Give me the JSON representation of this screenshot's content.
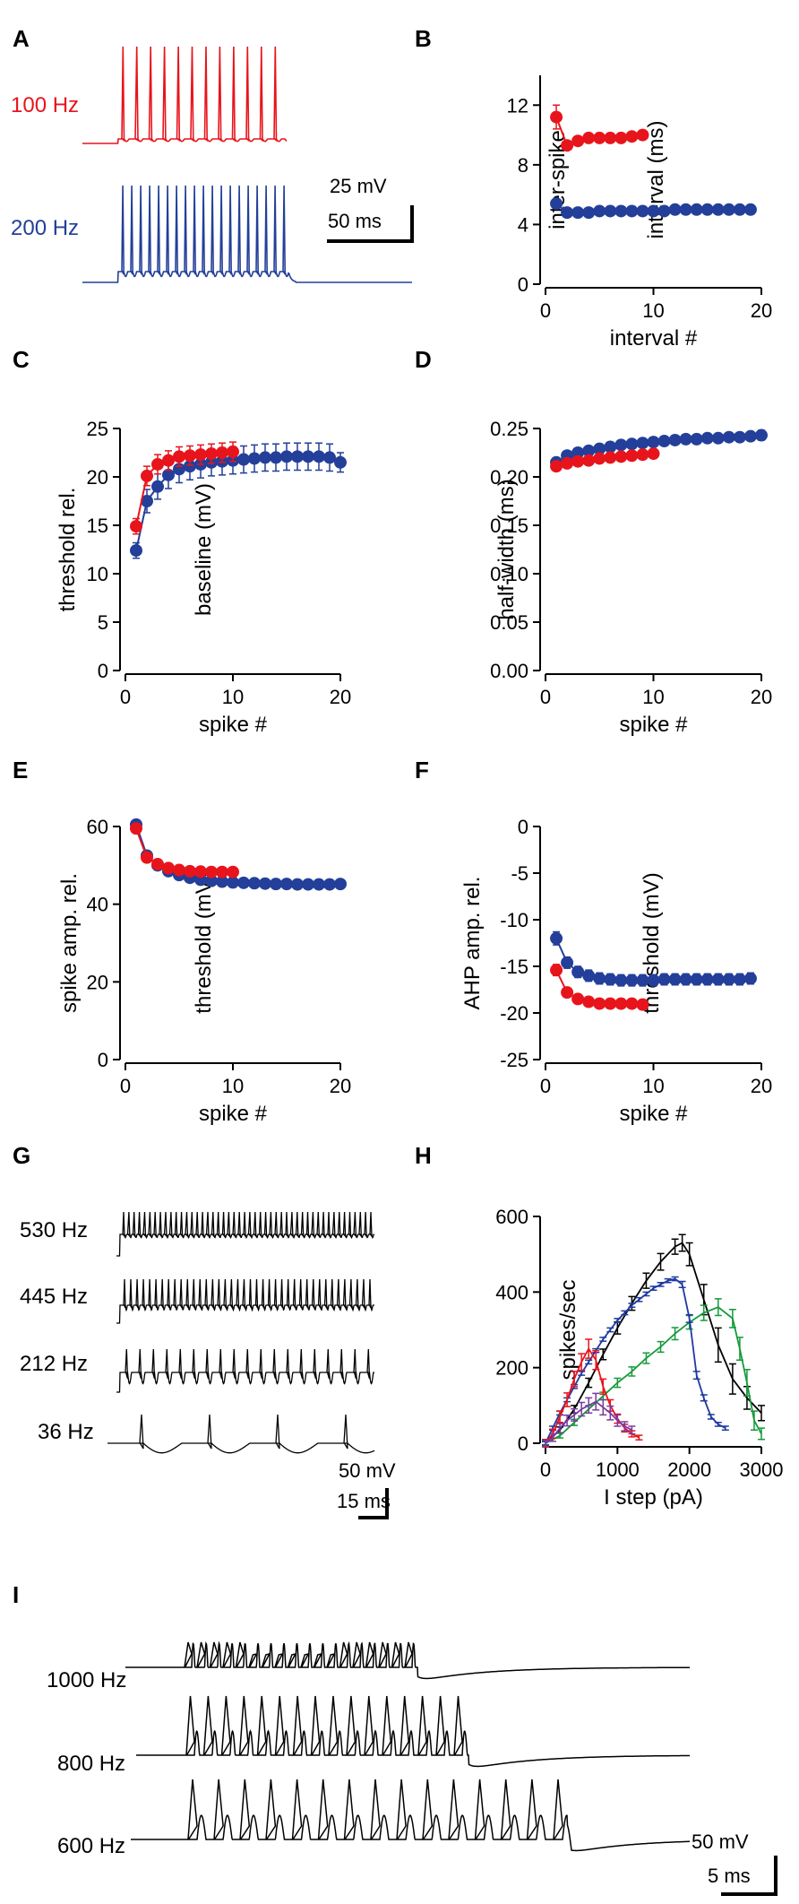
{
  "colors": {
    "red": "#e8141c",
    "blue": "#233f99",
    "black": "#000000",
    "green": "#159a3c",
    "purple": "#7a3aa3",
    "darkblue": "#1f3aa0"
  },
  "A": {
    "label": "A",
    "traces": [
      {
        "name": "100 Hz",
        "color": "#e8141c",
        "spike_count": 12
      },
      {
        "name": "200 Hz",
        "color": "#233f99",
        "spike_count": 19
      }
    ],
    "scalebar": {
      "v": "25 mV",
      "t": "50 ms"
    }
  },
  "G": {
    "label": "G",
    "traces": [
      {
        "name": "530 Hz",
        "spike_count": 48
      },
      {
        "name": "445 Hz",
        "spike_count": 40
      },
      {
        "name": "212 Hz",
        "spike_count": 19
      },
      {
        "name": "36 Hz",
        "spike_count": 4
      }
    ],
    "scalebar": {
      "v": "50 mV",
      "t": "15 ms"
    }
  },
  "I": {
    "label": "I",
    "traces": [
      {
        "name": "1000 Hz",
        "spike_count": 18
      },
      {
        "name": "800 Hz",
        "spike_count": 16
      },
      {
        "name": "600 Hz",
        "spike_count": 15
      }
    ],
    "scalebar": {
      "v": "50 mV",
      "t": "5 ms"
    }
  },
  "chart_data": [
    {
      "panel": "B",
      "type": "scatter",
      "xlabel": "interval #",
      "ylabel": "inter-spike interval (ms)",
      "xlim": [
        0,
        20
      ],
      "ylim": [
        0,
        14
      ],
      "xticks": [
        0,
        10,
        20
      ],
      "yticks": [
        0,
        4,
        8,
        12
      ],
      "series": [
        {
          "name": "100 Hz",
          "color": "#e8141c",
          "x": [
            1,
            2,
            3,
            4,
            5,
            6,
            7,
            8,
            9
          ],
          "values": [
            11.2,
            9.3,
            9.6,
            9.8,
            9.8,
            9.8,
            9.8,
            9.9,
            10.0
          ],
          "err": [
            0.8,
            0.3,
            0.2,
            0.2,
            0.2,
            0.2,
            0.2,
            0.2,
            0.2
          ]
        },
        {
          "name": "200 Hz",
          "color": "#233f99",
          "x": [
            1,
            2,
            3,
            4,
            5,
            6,
            7,
            8,
            9,
            10,
            11,
            12,
            13,
            14,
            15,
            16,
            17,
            18,
            19
          ],
          "values": [
            5.4,
            4.8,
            4.8,
            4.8,
            4.9,
            4.9,
            4.9,
            4.9,
            4.9,
            4.9,
            4.9,
            5.0,
            5.0,
            5.0,
            5.0,
            5.0,
            5.0,
            5.0,
            5.0
          ],
          "err": [
            0.1,
            0.1,
            0.1,
            0.1,
            0.1,
            0.1,
            0.1,
            0.1,
            0.1,
            0.1,
            0.1,
            0.1,
            0.1,
            0.1,
            0.1,
            0.1,
            0.1,
            0.1,
            0.1
          ]
        }
      ]
    },
    {
      "panel": "C",
      "type": "scatter",
      "xlabel": "spike #",
      "ylabel": "threshold rel. baseline (mV)",
      "xlim": [
        0,
        20
      ],
      "ylim": [
        0,
        25
      ],
      "xticks": [
        0,
        10,
        20
      ],
      "yticks": [
        0,
        5,
        10,
        15,
        20,
        25
      ],
      "series": [
        {
          "name": "200 Hz",
          "color": "#233f99",
          "x": [
            1,
            2,
            3,
            4,
            5,
            6,
            7,
            8,
            9,
            10,
            11,
            12,
            13,
            14,
            15,
            16,
            17,
            18,
            19,
            20
          ],
          "values": [
            12.4,
            17.5,
            19.0,
            20.2,
            20.8,
            21.1,
            21.3,
            21.5,
            21.6,
            21.7,
            21.8,
            21.9,
            22.0,
            22.0,
            22.1,
            22.1,
            22.1,
            22.1,
            22.0,
            21.5
          ],
          "err": [
            0.8,
            1.2,
            1.3,
            1.4,
            1.4,
            1.4,
            1.4,
            1.4,
            1.4,
            1.4,
            1.4,
            1.4,
            1.4,
            1.4,
            1.4,
            1.4,
            1.4,
            1.4,
            1.4,
            1.0
          ]
        },
        {
          "name": "100 Hz",
          "color": "#e8141c",
          "x": [
            1,
            2,
            3,
            4,
            5,
            6,
            7,
            8,
            9,
            10
          ],
          "values": [
            14.9,
            20.1,
            21.3,
            21.7,
            22.1,
            22.2,
            22.3,
            22.4,
            22.5,
            22.6
          ],
          "err": [
            0.8,
            1.0,
            1.0,
            1.0,
            1.0,
            1.0,
            1.0,
            1.0,
            1.0,
            1.0
          ]
        }
      ]
    },
    {
      "panel": "D",
      "type": "scatter",
      "xlabel": "spike #",
      "ylabel": "half-width (ms)",
      "xlim": [
        0,
        20
      ],
      "ylim": [
        0,
        0.25
      ],
      "xticks": [
        0,
        10,
        20
      ],
      "yticks": [
        0.0,
        0.05,
        0.1,
        0.15,
        0.2,
        0.25
      ],
      "ydec": 2,
      "series": [
        {
          "name": "200 Hz",
          "color": "#233f99",
          "x": [
            1,
            2,
            3,
            4,
            5,
            6,
            7,
            8,
            9,
            10,
            11,
            12,
            13,
            14,
            15,
            16,
            17,
            18,
            19,
            20
          ],
          "values": [
            0.215,
            0.222,
            0.225,
            0.227,
            0.229,
            0.231,
            0.233,
            0.234,
            0.235,
            0.236,
            0.237,
            0.238,
            0.239,
            0.239,
            0.24,
            0.24,
            0.241,
            0.241,
            0.242,
            0.243
          ],
          "err": [
            0.003,
            0.003,
            0.003,
            0.003,
            0.003,
            0.003,
            0.003,
            0.003,
            0.003,
            0.003,
            0.003,
            0.003,
            0.003,
            0.003,
            0.003,
            0.003,
            0.004,
            0.004,
            0.004,
            0.005
          ]
        },
        {
          "name": "100 Hz",
          "color": "#e8141c",
          "x": [
            1,
            2,
            3,
            4,
            5,
            6,
            7,
            8,
            9,
            10
          ],
          "values": [
            0.211,
            0.214,
            0.216,
            0.217,
            0.219,
            0.22,
            0.221,
            0.222,
            0.223,
            0.224
          ],
          "err": [
            0.003,
            0.003,
            0.003,
            0.003,
            0.003,
            0.003,
            0.003,
            0.003,
            0.003,
            0.003
          ]
        }
      ]
    },
    {
      "panel": "E",
      "type": "scatter",
      "xlabel": "spike #",
      "ylabel": "spike amp. rel. threshold (mV)",
      "xlim": [
        0,
        20
      ],
      "ylim": [
        0,
        60
      ],
      "xticks": [
        0,
        10,
        20
      ],
      "yticks": [
        0,
        20,
        40,
        60
      ],
      "series": [
        {
          "name": "200 Hz",
          "color": "#233f99",
          "x": [
            1,
            2,
            3,
            4,
            5,
            6,
            7,
            8,
            9,
            10,
            11,
            12,
            13,
            14,
            15,
            16,
            17,
            18,
            19,
            20
          ],
          "values": [
            60.5,
            52.5,
            50.0,
            48.5,
            47.5,
            46.8,
            46.3,
            46.0,
            45.8,
            45.6,
            45.5,
            45.4,
            45.3,
            45.2,
            45.2,
            45.1,
            45.1,
            45.1,
            45.1,
            45.2
          ],
          "err": [
            0.8,
            0.8,
            0.8,
            0.8,
            0.8,
            0.8,
            0.8,
            0.8,
            0.8,
            0.8,
            0.8,
            0.8,
            0.8,
            0.8,
            0.8,
            0.8,
            0.8,
            0.8,
            0.8,
            0.8
          ]
        },
        {
          "name": "100 Hz",
          "color": "#e8141c",
          "x": [
            1,
            2,
            3,
            4,
            5,
            6,
            7,
            8,
            9,
            10
          ],
          "values": [
            59.5,
            52.0,
            50.3,
            49.3,
            48.8,
            48.5,
            48.4,
            48.3,
            48.3,
            48.3
          ],
          "err": [
            0.8,
            0.8,
            0.8,
            0.8,
            0.8,
            0.8,
            0.8,
            0.8,
            0.8,
            0.8
          ]
        }
      ]
    },
    {
      "panel": "F",
      "type": "scatter",
      "xlabel": "spike #",
      "ylabel": "AHP amp. rel. threshold (mV)",
      "xlim": [
        0,
        20
      ],
      "ylim": [
        -25,
        0
      ],
      "xticks": [
        0,
        10,
        20
      ],
      "yticks": [
        0,
        -5,
        -10,
        -15,
        -20,
        -25
      ],
      "series": [
        {
          "name": "200 Hz",
          "color": "#233f99",
          "x": [
            1,
            2,
            3,
            4,
            5,
            6,
            7,
            8,
            9,
            10,
            11,
            12,
            13,
            14,
            15,
            16,
            17,
            18,
            19
          ],
          "values": [
            -12.0,
            -14.6,
            -15.6,
            -16.0,
            -16.3,
            -16.4,
            -16.5,
            -16.5,
            -16.5,
            -16.5,
            -16.4,
            -16.4,
            -16.4,
            -16.4,
            -16.4,
            -16.4,
            -16.4,
            -16.4,
            -16.3
          ],
          "err": [
            0.7,
            0.6,
            0.6,
            0.6,
            0.6,
            0.6,
            0.6,
            0.6,
            0.6,
            0.6,
            0.6,
            0.6,
            0.6,
            0.6,
            0.6,
            0.6,
            0.6,
            0.6,
            0.6
          ]
        },
        {
          "name": "100 Hz",
          "color": "#e8141c",
          "x": [
            1,
            2,
            3,
            4,
            5,
            6,
            7,
            8,
            9
          ],
          "values": [
            -15.4,
            -17.8,
            -18.5,
            -18.8,
            -19.0,
            -19.0,
            -19.0,
            -19.0,
            -19.1
          ],
          "err": [
            0.6,
            0.5,
            0.5,
            0.5,
            0.5,
            0.5,
            0.5,
            0.5,
            0.5
          ]
        }
      ]
    },
    {
      "panel": "H",
      "type": "line",
      "xlabel": "I step (pA)",
      "ylabel": "spikes/sec",
      "xlim": [
        0,
        3000
      ],
      "ylim": [
        0,
        600
      ],
      "xticks": [
        0,
        1000,
        2000,
        3000
      ],
      "yticks": [
        0,
        200,
        400,
        600
      ],
      "series": [
        {
          "name": "black",
          "color": "#000000",
          "x": [
            0,
            200,
            400,
            600,
            800,
            1000,
            1200,
            1400,
            1600,
            1800,
            1900,
            2000,
            2200,
            2400,
            2600,
            2800,
            3000
          ],
          "values": [
            0,
            35,
            90,
            160,
            235,
            305,
            370,
            430,
            480,
            520,
            530,
            500,
            380,
            260,
            170,
            120,
            80
          ],
          "err": [
            5,
            8,
            10,
            12,
            14,
            16,
            18,
            20,
            22,
            20,
            22,
            30,
            40,
            45,
            40,
            30,
            20
          ]
        },
        {
          "name": "green",
          "color": "#159a3c",
          "x": [
            0,
            200,
            400,
            600,
            800,
            1000,
            1200,
            1400,
            1600,
            1800,
            2000,
            2200,
            2400,
            2600,
            2700,
            2800,
            2900,
            3000
          ],
          "values": [
            0,
            20,
            55,
            90,
            125,
            160,
            190,
            225,
            255,
            290,
            320,
            345,
            360,
            330,
            250,
            160,
            60,
            25
          ],
          "err": [
            4,
            6,
            8,
            10,
            10,
            12,
            12,
            14,
            14,
            16,
            18,
            20,
            22,
            24,
            30,
            35,
            25,
            15
          ]
        },
        {
          "name": "blue",
          "color": "#1f3aa0",
          "x": [
            0,
            100,
            200,
            300,
            400,
            500,
            600,
            700,
            800,
            900,
            1000,
            1100,
            1200,
            1300,
            1400,
            1500,
            1600,
            1700,
            1800,
            1900,
            2000,
            2100,
            2200,
            2300,
            2400,
            2500
          ],
          "values": [
            0,
            40,
            80,
            115,
            150,
            185,
            215,
            245,
            275,
            300,
            325,
            345,
            365,
            380,
            395,
            410,
            420,
            430,
            435,
            420,
            330,
            180,
            120,
            70,
            50,
            40
          ],
          "err": [
            5,
            5,
            5,
            5,
            5,
            5,
            5,
            5,
            5,
            5,
            5,
            5,
            5,
            5,
            5,
            5,
            5,
            5,
            5,
            8,
            10,
            10,
            8,
            6,
            5,
            5
          ]
        },
        {
          "name": "red",
          "color": "#e8141c",
          "x": [
            0,
            100,
            200,
            300,
            400,
            500,
            600,
            700,
            800,
            900,
            1000,
            1100,
            1200,
            1300
          ],
          "values": [
            0,
            25,
            70,
            115,
            170,
            215,
            250,
            220,
            150,
            100,
            65,
            40,
            25,
            15
          ],
          "err": [
            10,
            12,
            15,
            18,
            20,
            22,
            25,
            25,
            20,
            15,
            12,
            10,
            8,
            6
          ]
        },
        {
          "name": "purple",
          "color": "#7a3aa3",
          "x": [
            0,
            100,
            200,
            300,
            400,
            500,
            600,
            700,
            800,
            900,
            1000,
            1100,
            1200
          ],
          "values": [
            0,
            15,
            40,
            60,
            75,
            90,
            100,
            110,
            95,
            80,
            60,
            45,
            35
          ],
          "err": [
            8,
            10,
            12,
            14,
            16,
            18,
            20,
            22,
            20,
            18,
            15,
            12,
            10
          ]
        }
      ]
    }
  ]
}
